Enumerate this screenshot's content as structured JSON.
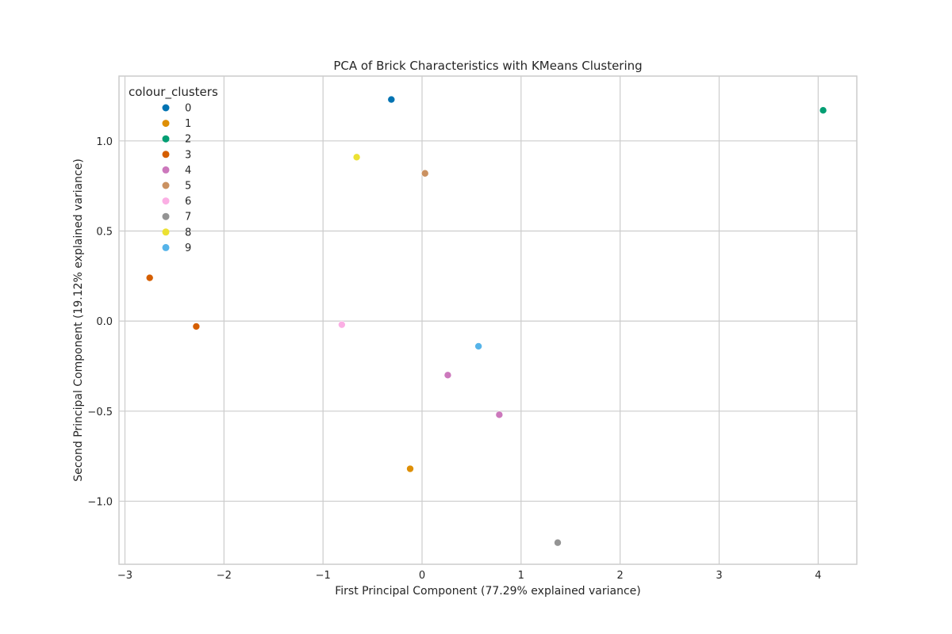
{
  "chart_data": {
    "type": "scatter",
    "title": "PCA of Brick Characteristics with KMeans Clustering",
    "xlabel": "First Principal Component (77.29% explained variance)",
    "ylabel": "Second Principal Component (19.12% explained variance)",
    "xlim": [
      -3.06,
      4.39
    ],
    "ylim": [
      -1.35,
      1.36
    ],
    "xticks": [
      -3,
      -2,
      -1,
      0,
      1,
      2,
      3,
      4
    ],
    "xtick_labels": [
      "−3",
      "−2",
      "−1",
      "0",
      "1",
      "2",
      "3",
      "4"
    ],
    "yticks": [
      -1.0,
      -0.5,
      0.0,
      0.5,
      1.0
    ],
    "ytick_labels": [
      "−1.0",
      "−0.5",
      "0.0",
      "0.5",
      "1.0"
    ],
    "grid": true,
    "legend": {
      "title": "colour_clusters",
      "placement": "top-left",
      "entries": [
        {
          "label": "0",
          "color": "#0173b2"
        },
        {
          "label": "1",
          "color": "#de8f05"
        },
        {
          "label": "2",
          "color": "#029e73"
        },
        {
          "label": "3",
          "color": "#d55e00"
        },
        {
          "label": "4",
          "color": "#cc78bc"
        },
        {
          "label": "5",
          "color": "#ca9161"
        },
        {
          "label": "6",
          "color": "#fbafe4"
        },
        {
          "label": "7",
          "color": "#949494"
        },
        {
          "label": "8",
          "color": "#ece133"
        },
        {
          "label": "9",
          "color": "#56b4e9"
        }
      ]
    },
    "points": [
      {
        "x": -0.31,
        "y": 1.23,
        "cluster": "0"
      },
      {
        "x": -0.12,
        "y": -0.82,
        "cluster": "1"
      },
      {
        "x": 4.05,
        "y": 1.17,
        "cluster": "2"
      },
      {
        "x": -2.75,
        "y": 0.24,
        "cluster": "3"
      },
      {
        "x": -2.28,
        "y": -0.03,
        "cluster": "3"
      },
      {
        "x": 0.26,
        "y": -0.3,
        "cluster": "4"
      },
      {
        "x": 0.78,
        "y": -0.52,
        "cluster": "4"
      },
      {
        "x": 0.03,
        "y": 0.82,
        "cluster": "5"
      },
      {
        "x": -0.81,
        "y": -0.02,
        "cluster": "6"
      },
      {
        "x": 1.37,
        "y": -1.23,
        "cluster": "7"
      },
      {
        "x": -0.66,
        "y": 0.91,
        "cluster": "8"
      },
      {
        "x": 0.57,
        "y": -0.14,
        "cluster": "9"
      }
    ]
  }
}
